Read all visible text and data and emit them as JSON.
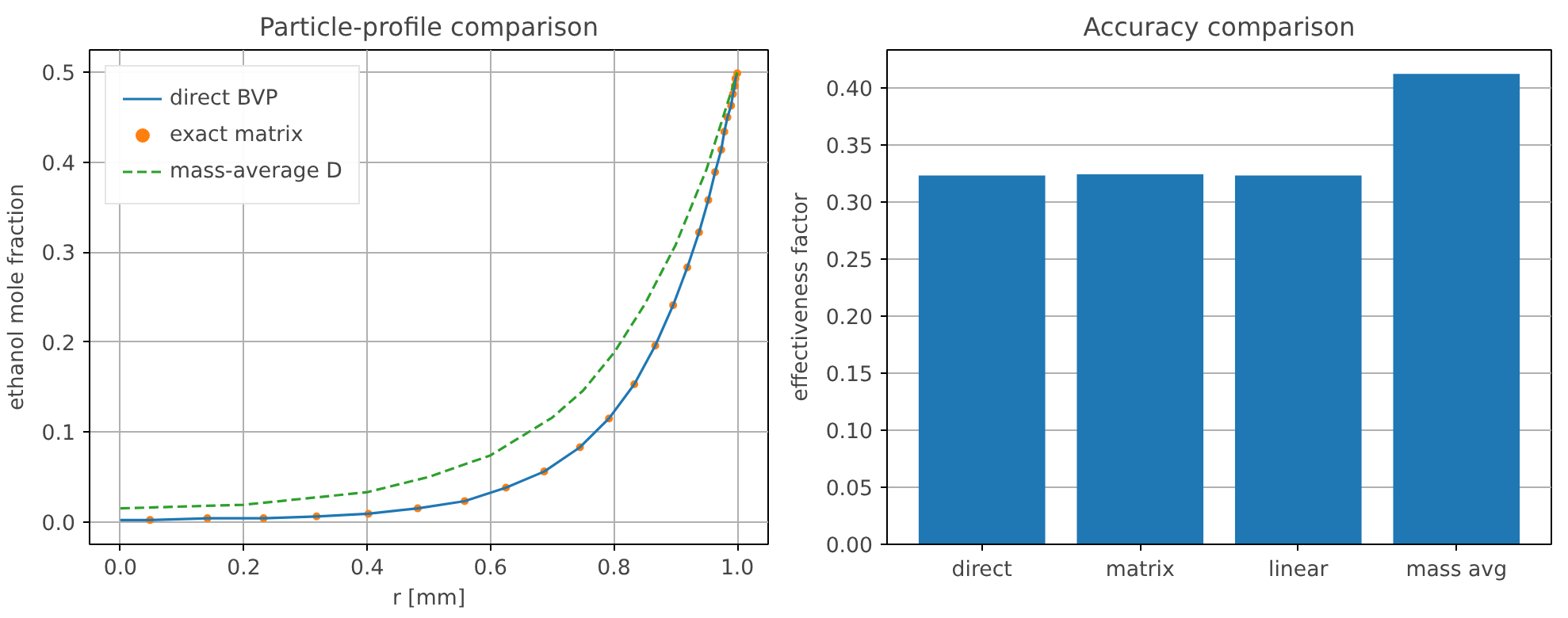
{
  "chart_data": [
    {
      "type": "line",
      "title": "Particle-profile comparison",
      "xlabel": "r [mm]",
      "ylabel": "ethanol mole fraction",
      "xlim": [
        -0.05,
        1.05
      ],
      "ylim": [
        -0.025,
        0.525
      ],
      "xticks": [
        {
          "value": 0,
          "label": "0.0"
        },
        0.2,
        0.4,
        0.6,
        0.8,
        {
          "value": 1,
          "label": "1.0"
        }
      ],
      "yticks": [
        {
          "value": 0,
          "label": "0.0"
        },
        0.1,
        0.2,
        0.3,
        0.4,
        0.5
      ],
      "grid": true,
      "legend": "top left",
      "series": [
        {
          "name": "direct BVP",
          "type": "line",
          "color": "#1f77b4",
          "line_style": "solid",
          "x": [
            0,
            0.048,
            0.141,
            0.232,
            0.318,
            0.402,
            0.482,
            0.558,
            0.625,
            0.687,
            0.745,
            0.792,
            0.833,
            0.867,
            0.896,
            0.919,
            0.938,
            0.953,
            0.964,
            0.974,
            0.979,
            0.984,
            0.99,
            0.993,
            0.996,
            0.997,
            1.0
          ],
          "values": [
            0.002,
            0.002,
            0.004,
            0.004,
            0.006,
            0.009,
            0.015,
            0.023,
            0.038,
            0.056,
            0.083,
            0.115,
            0.153,
            0.196,
            0.241,
            0.283,
            0.322,
            0.358,
            0.389,
            0.414,
            0.434,
            0.45,
            0.463,
            0.476,
            0.485,
            0.493,
            0.499
          ]
        },
        {
          "name": "exact matrix",
          "type": "scatter",
          "color": "#ff7f0e",
          "marker": "circle",
          "x": [
            0.048,
            0.141,
            0.232,
            0.318,
            0.402,
            0.482,
            0.558,
            0.625,
            0.687,
            0.745,
            0.792,
            0.833,
            0.867,
            0.896,
            0.919,
            0.938,
            0.953,
            0.964,
            0.974,
            0.979,
            0.984,
            0.99,
            0.993,
            0.996,
            0.997,
            1.0
          ],
          "values": [
            0.002,
            0.004,
            0.004,
            0.006,
            0.009,
            0.015,
            0.023,
            0.038,
            0.056,
            0.083,
            0.115,
            0.153,
            0.196,
            0.241,
            0.283,
            0.322,
            0.358,
            0.389,
            0.414,
            0.434,
            0.45,
            0.463,
            0.476,
            0.485,
            0.493,
            0.499
          ]
        },
        {
          "name": "mass-average D",
          "type": "line",
          "color": "#2ca02c",
          "line_style": "dashed",
          "x": [
            0,
            0.2,
            0.4,
            0.5,
            0.6,
            0.7,
            0.75,
            0.8,
            0.85,
            0.9,
            0.95,
            1.0
          ],
          "values": [
            0.015,
            0.019,
            0.033,
            0.05,
            0.074,
            0.116,
            0.146,
            0.188,
            0.242,
            0.308,
            0.392,
            0.5
          ]
        }
      ]
    },
    {
      "type": "bar",
      "title": "Accuracy comparison",
      "ylabel": "effectiveness factor",
      "categories": [
        "direct",
        "matrix",
        "linear",
        "mass avg"
      ],
      "values": [
        0.323,
        0.324,
        0.323,
        0.412
      ],
      "color": "#1f77b4",
      "ylim": [
        0,
        0.433
      ],
      "yticks": [
        {
          "value": 0,
          "label": "0.00"
        },
        {
          "value": 0.05,
          "label": "0.05"
        },
        {
          "value": 0.1,
          "label": "0.10"
        },
        {
          "value": 0.15,
          "label": "0.15"
        },
        {
          "value": 0.2,
          "label": "0.20"
        },
        {
          "value": 0.25,
          "label": "0.25"
        },
        {
          "value": 0.3,
          "label": "0.30"
        },
        {
          "value": 0.35,
          "label": "0.35"
        },
        {
          "value": 0.4,
          "label": "0.40"
        }
      ],
      "grid": "y"
    }
  ]
}
